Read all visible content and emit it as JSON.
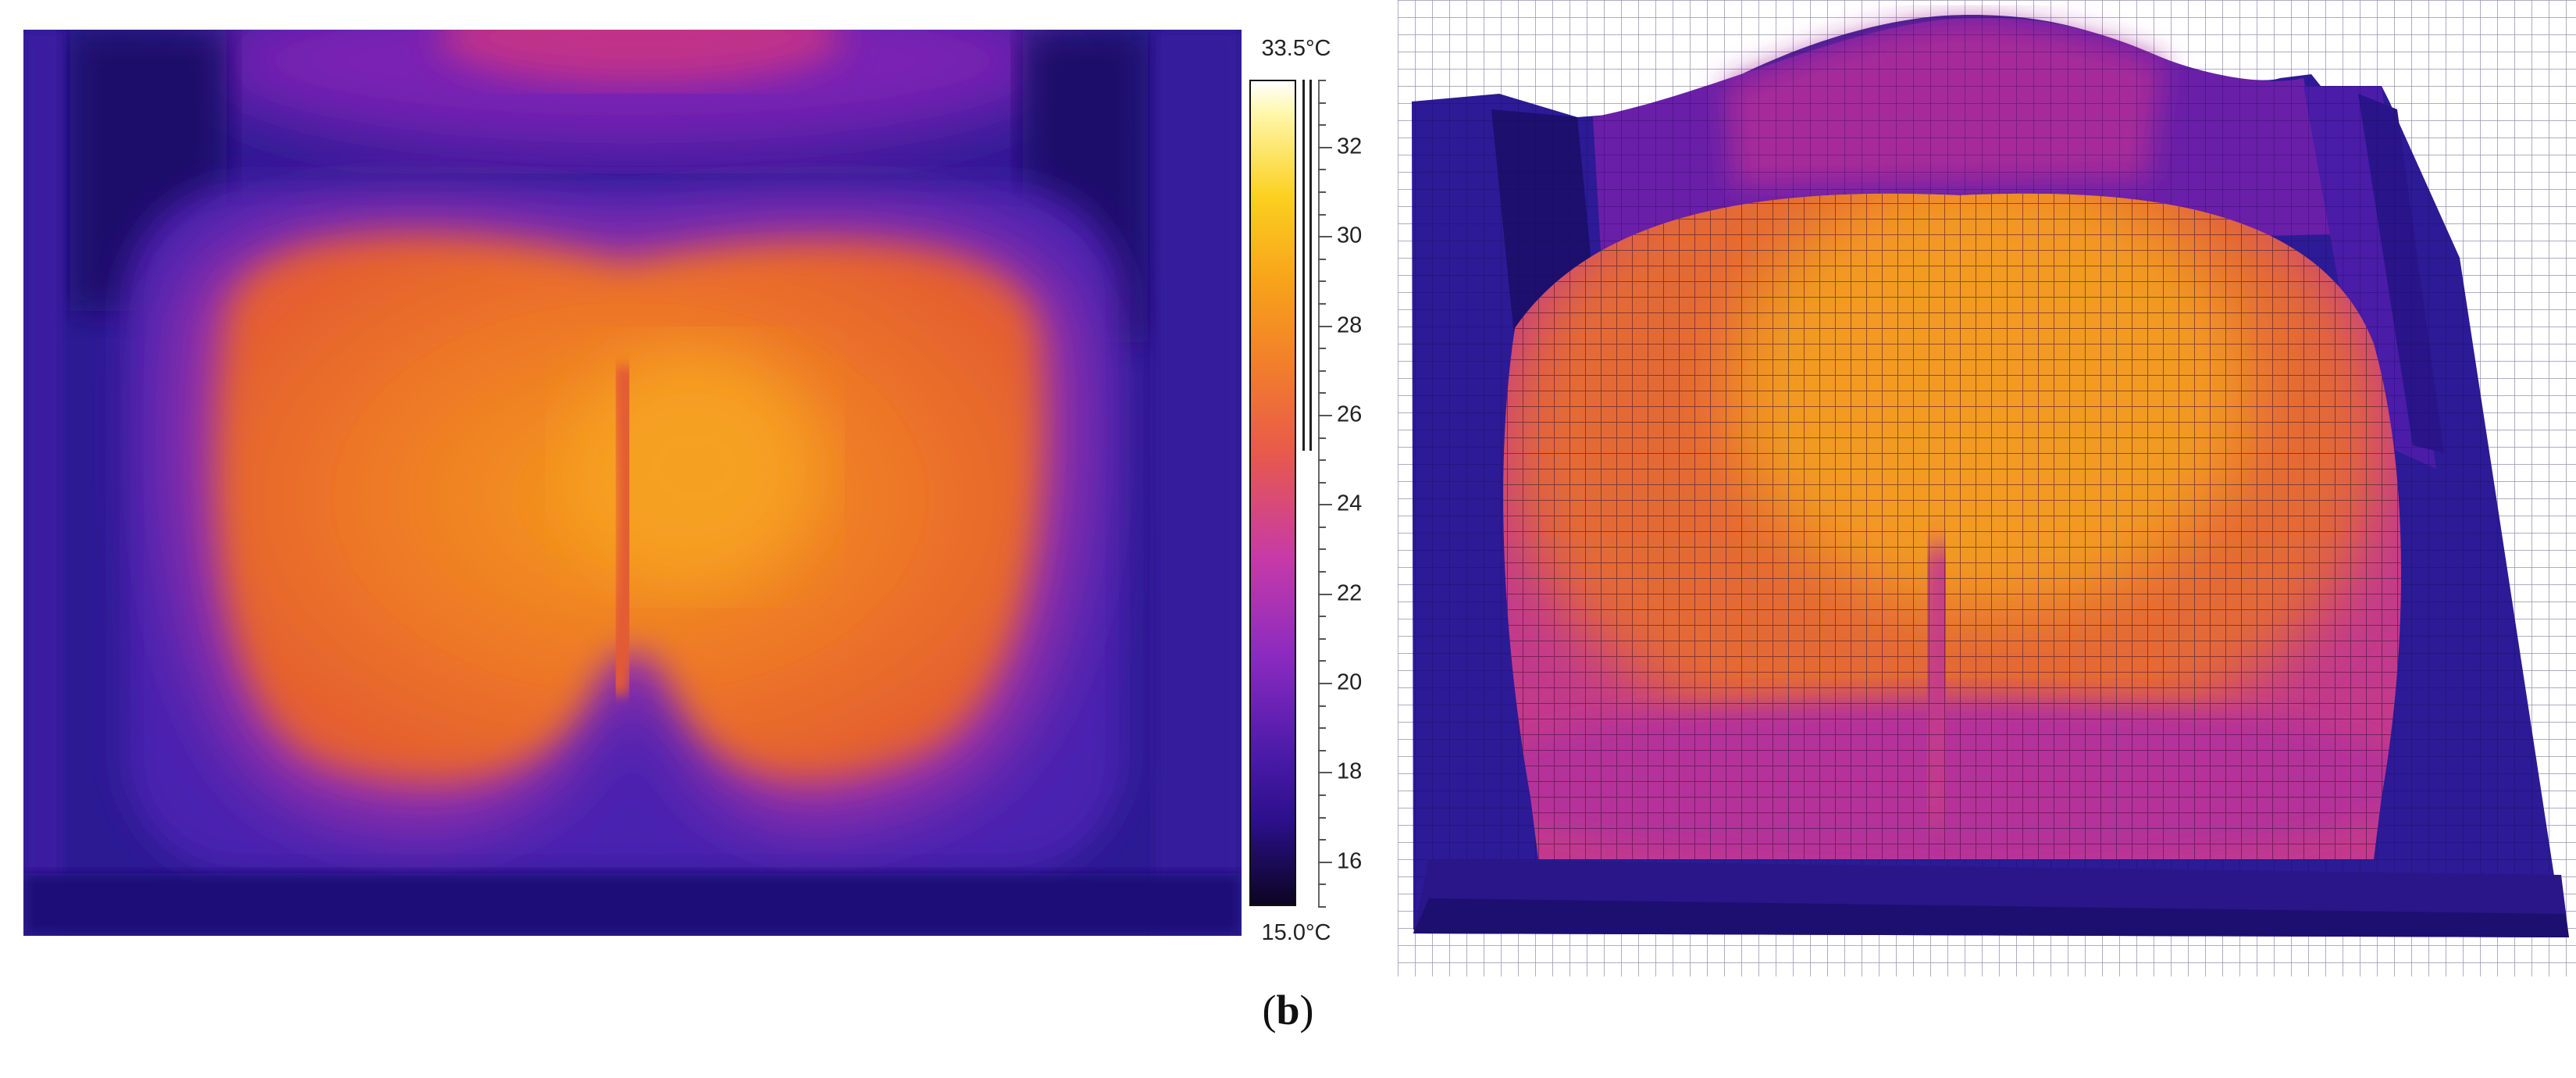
{
  "scale": {
    "max_label": "33.5°C",
    "min_label": "15.0°C",
    "range": [
      15.0,
      33.5
    ],
    "ticks": [
      16,
      18,
      20,
      22,
      24,
      26,
      28,
      30,
      32
    ],
    "palette": [
      "#0b0522",
      "#2b0f8a",
      "#8a2ac0",
      "#e85a4a",
      "#f8a41a",
      "#fff7a8",
      "#ffffff"
    ]
  },
  "caption": {
    "open": "(",
    "letter": "b",
    "close": ")"
  }
}
